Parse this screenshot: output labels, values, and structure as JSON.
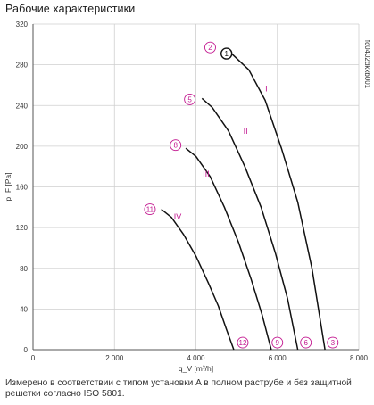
{
  "title": "Рабочие характеристики",
  "note": "Измерено в соответствии с типом установки A в полном раструбе и без защитной решетки согласно ISO 5801.",
  "colors": {
    "curve": "#c2178f",
    "grid": "#cfcfcf",
    "axis": "#555555",
    "text": "#333333"
  },
  "chart_data": {
    "type": "line",
    "xlabel": "q_V [m³/h]",
    "ylabel": "p_F [Pa]",
    "xlim": [
      0,
      8000
    ],
    "ylim": [
      0,
      320
    ],
    "xticks": [
      "0",
      "2.000",
      "4.000",
      "6.000",
      "8.000"
    ],
    "yticks": [
      "0",
      "40",
      "80",
      "120",
      "160",
      "200",
      "240",
      "280",
      "320"
    ],
    "x_tick_values": [
      0,
      2000,
      4000,
      6000,
      8000
    ],
    "y_tick_values": [
      0,
      40,
      80,
      120,
      160,
      200,
      240,
      280,
      320
    ],
    "side_code": "fc0402dkxb001",
    "series": [
      {
        "name": "I",
        "x": [
          4750,
          4900,
          5300,
          5700,
          6100,
          6500,
          6850,
          7170
        ],
        "y": [
          292,
          290,
          275,
          245,
          198,
          145,
          80,
          0
        ]
      },
      {
        "name": "II",
        "x": [
          4150,
          4400,
          4800,
          5200,
          5600,
          5950,
          6250,
          6500
        ],
        "y": [
          247,
          238,
          215,
          180,
          140,
          95,
          50,
          0
        ]
      },
      {
        "name": "III",
        "x": [
          3750,
          4000,
          4350,
          4700,
          5050,
          5350,
          5620,
          5850
        ],
        "y": [
          198,
          190,
          170,
          140,
          105,
          70,
          35,
          0
        ]
      },
      {
        "name": "IV",
        "x": [
          3150,
          3400,
          3700,
          4000,
          4300,
          4550,
          4750,
          4930
        ],
        "y": [
          138,
          130,
          113,
          92,
          66,
          43,
          20,
          0
        ]
      }
    ],
    "markers": [
      {
        "label": "2",
        "x": 4350,
        "y": 297,
        "style": "circle"
      },
      {
        "label": "1",
        "x": 4750,
        "y": 291,
        "style": "circle-bold"
      },
      {
        "label": "5",
        "x": 3850,
        "y": 246,
        "style": "circle"
      },
      {
        "label": "8",
        "x": 3500,
        "y": 201,
        "style": "circle"
      },
      {
        "label": "11",
        "x": 2870,
        "y": 138,
        "style": "circle"
      },
      {
        "label": "12",
        "x": 5150,
        "y": 7,
        "style": "circle"
      },
      {
        "label": "9",
        "x": 6000,
        "y": 7,
        "style": "circle"
      },
      {
        "label": "6",
        "x": 6700,
        "y": 7,
        "style": "circle"
      },
      {
        "label": "3",
        "x": 7360,
        "y": 7,
        "style": "circle"
      }
    ],
    "curve_labels": [
      {
        "text": "I",
        "x": 5730,
        "y": 254
      },
      {
        "text": "II",
        "x": 5220,
        "y": 212
      },
      {
        "text": "III",
        "x": 4250,
        "y": 170
      },
      {
        "text": "IV",
        "x": 3550,
        "y": 128
      }
    ]
  }
}
